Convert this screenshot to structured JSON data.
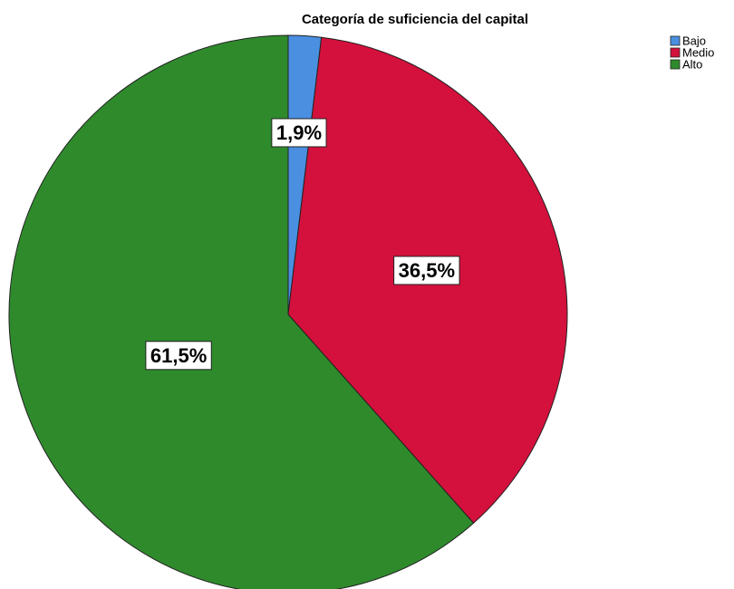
{
  "chart_data": {
    "type": "pie",
    "title": "Categoría de suficiencia del capital",
    "categories": [
      "Bajo",
      "Medio",
      "Alto"
    ],
    "values": [
      1.9,
      36.5,
      61.5
    ],
    "value_labels": [
      "1,9%",
      "36,5%",
      "61,5%"
    ],
    "colors": [
      "#4a8fe0",
      "#d4103c",
      "#2f8a2c"
    ],
    "legend": "top-right"
  }
}
